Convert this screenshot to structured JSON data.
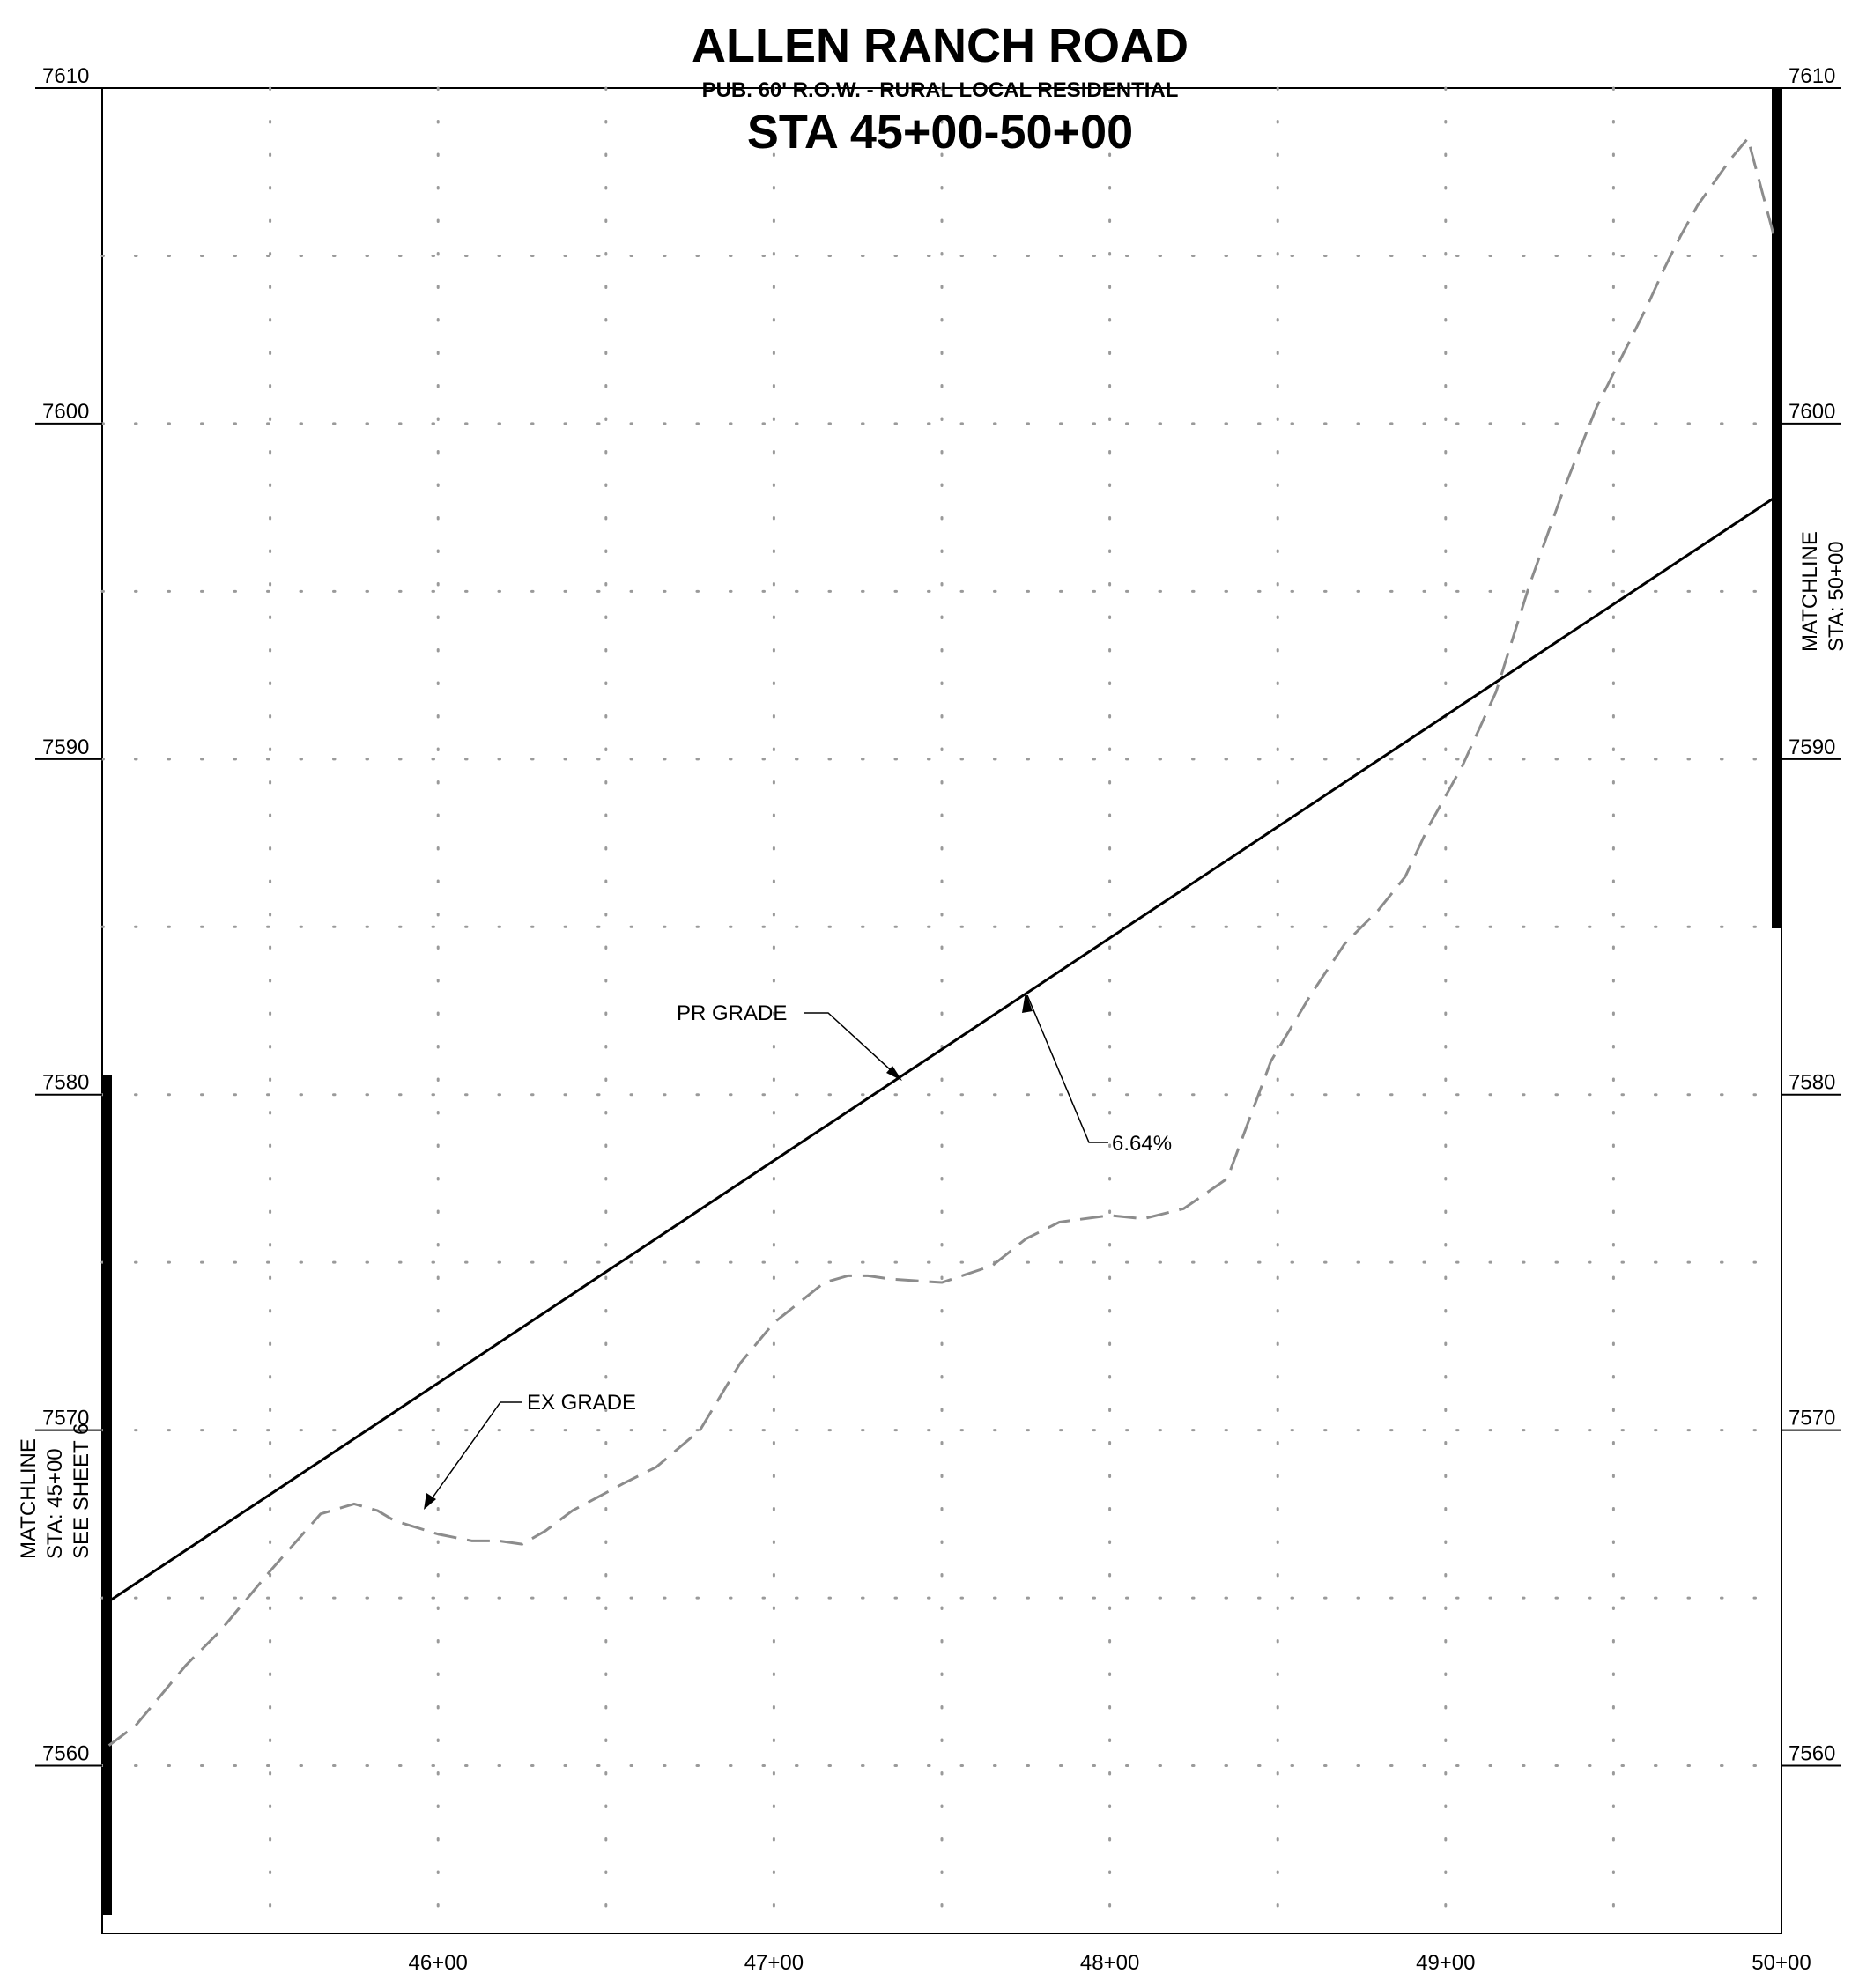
{
  "title": {
    "main": "ALLEN RANCH ROAD",
    "subtitle": "PUB. 60' R.O.W. - RURAL LOCAL RESIDENTIAL",
    "stations": "STA 45+00-50+00"
  },
  "matchlines": {
    "left": [
      "MATCHLINE",
      "STA: 45+00",
      "SEE SHEET 6"
    ],
    "right": [
      "MATCHLINE",
      "STA: 50+00"
    ]
  },
  "annotations": {
    "pr_grade": "PR GRADE",
    "ex_grade": "EX GRADE",
    "slope": "6.64%"
  },
  "colors": {
    "grid": "#9a9a9a",
    "ex_grade": "#8c8c8c",
    "pr_grade": "#000000"
  },
  "chart_data": {
    "type": "line",
    "title": "ALLEN RANCH ROAD",
    "xlabel": "",
    "ylabel": "",
    "xlim": [
      4500,
      5000
    ],
    "ylim": [
      7555,
      7610
    ],
    "x_ticks": [
      {
        "value": 4600,
        "label": "46+00"
      },
      {
        "value": 4700,
        "label": "47+00"
      },
      {
        "value": 4800,
        "label": "48+00"
      },
      {
        "value": 4900,
        "label": "49+00"
      },
      {
        "value": 5000,
        "label": "50+00"
      }
    ],
    "y_ticks": [
      7560,
      7570,
      7580,
      7590,
      7600,
      7610
    ],
    "grid": true,
    "grid_x_step": 50,
    "grid_y_step": 5,
    "series": [
      {
        "name": "PR GRADE",
        "style": "solid",
        "x": [
          4502,
          4998
        ],
        "y": [
          7564.9,
          7597.8
        ]
      },
      {
        "name": "EX GRADE",
        "style": "dashed",
        "x": [
          4502,
          4510,
          4525,
          4535,
          4550,
          4565,
          4575,
          4582,
          4587,
          4600,
          4610,
          4618,
          4625,
          4632,
          4640,
          4655,
          4665,
          4678,
          4690,
          4700,
          4715,
          4722,
          4728,
          4735,
          4750,
          4765,
          4775,
          4785,
          4800,
          4810,
          4822,
          4835,
          4848,
          4860,
          4870,
          4880,
          4888,
          4895,
          4905,
          4915,
          4925,
          4935,
          4945,
          4955,
          4960,
          4965,
          4970,
          4975,
          4980,
          4985,
          4990,
          4998
        ],
        "y": [
          7560.6,
          7561.2,
          7563.0,
          7564.0,
          7565.8,
          7567.5,
          7567.8,
          7567.6,
          7567.3,
          7566.9,
          7566.7,
          7566.7,
          7566.6,
          7567.0,
          7567.6,
          7568.4,
          7568.9,
          7570.0,
          7572.0,
          7573.2,
          7574.4,
          7574.6,
          7574.6,
          7574.5,
          7574.4,
          7574.9,
          7575.7,
          7576.2,
          7576.4,
          7576.3,
          7576.6,
          7577.5,
          7581.0,
          7583.0,
          7584.5,
          7585.5,
          7586.5,
          7588.0,
          7589.8,
          7592.0,
          7595.2,
          7598.0,
          7600.5,
          7602.5,
          7603.5,
          7604.6,
          7605.6,
          7606.5,
          7607.2,
          7607.9,
          7608.5,
          7605.5
        ]
      }
    ]
  }
}
